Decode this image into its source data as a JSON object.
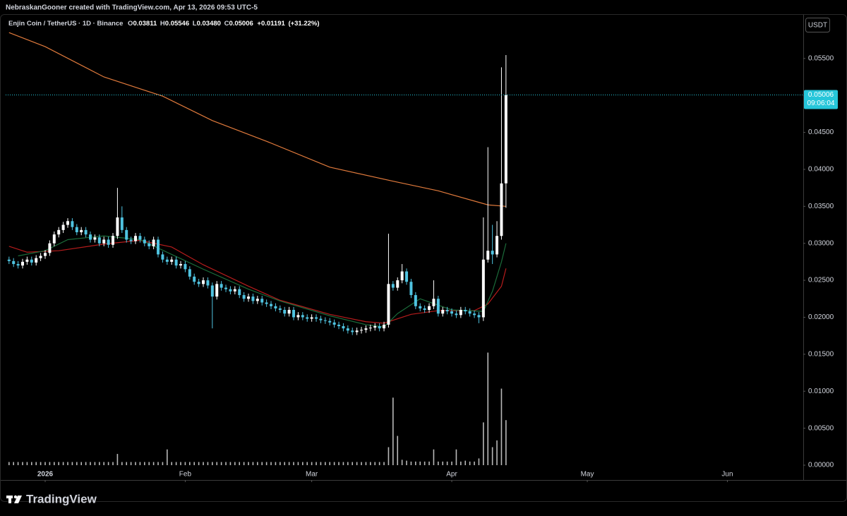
{
  "header": "NebraskanGooner created with TradingView.com, Apr 13, 2026 09:53 UTC-5",
  "brand": "TradingView",
  "chart_data": {
    "type": "candlestick",
    "symbol": "Enjin Coin / TetherUS · 1D · Binance",
    "ohlc_legend": [
      {
        "key": "O",
        "value": 0.03811,
        "label": "0.03811"
      },
      {
        "key": "H",
        "value": 0.05546,
        "label": "0.05546"
      },
      {
        "key": "L",
        "value": 0.0348,
        "label": "0.03480"
      },
      {
        "key": "C",
        "value": 0.05006,
        "label": "0.05006"
      }
    ],
    "change": {
      "value": 0.01191,
      "label": "+0.01191"
    },
    "change_pct": {
      "value": 31.22,
      "label": "(+31.22%)"
    },
    "currency": "USDT",
    "countdown": "09:06:04",
    "last_price": {
      "value": 0.05006,
      "label": "0.05006"
    },
    "up_color": "#ffffff",
    "down_color": "#4fc3e0",
    "volume_color": "#b8b8b8",
    "last_color": "#26c6da",
    "xlim": [
      -8.75,
      167.8
    ],
    "xticks": [
      {
        "value": 0,
        "label": "2026"
      },
      {
        "value": 31,
        "label": "Feb"
      },
      {
        "value": 59,
        "label": "Mar"
      },
      {
        "value": 90,
        "label": "Apr"
      },
      {
        "value": 120,
        "label": "May"
      },
      {
        "value": 151,
        "label": "Jun"
      }
    ],
    "ylim": [
      0,
      0.0609
    ],
    "yticks": [
      {
        "value": 0,
        "label": "0.00000"
      },
      {
        "value": 0.005,
        "label": "0.00500"
      },
      {
        "value": 0.01,
        "label": "0.01000"
      },
      {
        "value": 0.015,
        "label": "0.01500"
      },
      {
        "value": 0.02,
        "label": "0.02000"
      },
      {
        "value": 0.025,
        "label": "0.02500"
      },
      {
        "value": 0.03,
        "label": "0.03000"
      },
      {
        "value": 0.035,
        "label": "0.03500"
      },
      {
        "value": 0.04,
        "label": "0.04000"
      },
      {
        "value": 0.045,
        "label": "0.04500"
      },
      {
        "value": 0.05,
        "label": "0.05000"
      },
      {
        "value": 0.055,
        "label": "0.05500"
      }
    ],
    "y2lim": [
      0,
      100
    ],
    "x": [
      -8,
      -7,
      -6,
      -5,
      -4,
      -3,
      -2,
      -1,
      0,
      1,
      2,
      3,
      4,
      5,
      6,
      7,
      8,
      9,
      10,
      11,
      12,
      13,
      14,
      15,
      16,
      17,
      18,
      19,
      20,
      21,
      22,
      23,
      24,
      25,
      26,
      27,
      28,
      29,
      30,
      31,
      32,
      33,
      34,
      35,
      36,
      37,
      38,
      39,
      40,
      41,
      42,
      43,
      44,
      45,
      46,
      47,
      48,
      49,
      50,
      51,
      52,
      53,
      54,
      55,
      56,
      57,
      58,
      59,
      60,
      61,
      62,
      63,
      64,
      65,
      66,
      67,
      68,
      69,
      70,
      71,
      72,
      73,
      74,
      75,
      76,
      77,
      78,
      79,
      80,
      81,
      82,
      83,
      84,
      85,
      86,
      87,
      88,
      89,
      90,
      91,
      92,
      93,
      94,
      95,
      96,
      97,
      98,
      99,
      100,
      101,
      102
    ],
    "open": [
      0.0278,
      0.0276,
      0.0272,
      0.027,
      0.0275,
      0.0278,
      0.0274,
      0.028,
      0.0283,
      0.0287,
      0.03,
      0.0312,
      0.0318,
      0.0325,
      0.033,
      0.0322,
      0.0315,
      0.0318,
      0.0312,
      0.0305,
      0.0308,
      0.03,
      0.0305,
      0.0298,
      0.031,
      0.0335,
      0.0318,
      0.0305,
      0.0303,
      0.031,
      0.0305,
      0.03,
      0.0296,
      0.0305,
      0.0285,
      0.0278,
      0.0275,
      0.0278,
      0.027,
      0.0272,
      0.0265,
      0.0255,
      0.0248,
      0.0245,
      0.025,
      0.0243,
      0.0228,
      0.0245,
      0.024,
      0.0238,
      0.0235,
      0.0238,
      0.023,
      0.0225,
      0.0228,
      0.0222,
      0.0225,
      0.022,
      0.0218,
      0.0215,
      0.0212,
      0.021,
      0.0205,
      0.021,
      0.02,
      0.0203,
      0.02,
      0.0198,
      0.02,
      0.0198,
      0.0196,
      0.0195,
      0.0193,
      0.019,
      0.0188,
      0.0185,
      0.0182,
      0.018,
      0.0182,
      0.0183,
      0.0185,
      0.0186,
      0.0188,
      0.0185,
      0.019,
      0.0245,
      0.024,
      0.025,
      0.0262,
      0.0248,
      0.023,
      0.0215,
      0.0212,
      0.021,
      0.0215,
      0.0225,
      0.0205,
      0.021,
      0.0208,
      0.0205,
      0.0203,
      0.021,
      0.0208,
      0.0205,
      0.0203,
      0.02,
      0.0278,
      0.029,
      0.0285,
      0.031,
      0.03811
    ],
    "high": [
      0.0282,
      0.028,
      0.0276,
      0.0279,
      0.0282,
      0.0282,
      0.0284,
      0.0287,
      0.0291,
      0.0304,
      0.0316,
      0.0322,
      0.0329,
      0.0334,
      0.0334,
      0.0326,
      0.0322,
      0.0322,
      0.0316,
      0.0312,
      0.0312,
      0.0309,
      0.0309,
      0.0314,
      0.0375,
      0.035,
      0.0322,
      0.0309,
      0.0314,
      0.0314,
      0.0309,
      0.0304,
      0.0309,
      0.0309,
      0.0289,
      0.0282,
      0.0282,
      0.0282,
      0.0276,
      0.0276,
      0.0269,
      0.0259,
      0.0252,
      0.0254,
      0.0254,
      0.0247,
      0.0249,
      0.0249,
      0.0244,
      0.0242,
      0.0242,
      0.0242,
      0.0234,
      0.0232,
      0.0232,
      0.0229,
      0.0229,
      0.0224,
      0.0222,
      0.0219,
      0.0216,
      0.0214,
      0.0214,
      0.0214,
      0.0207,
      0.0207,
      0.0204,
      0.0204,
      0.0204,
      0.0202,
      0.02,
      0.0199,
      0.0197,
      0.0194,
      0.0192,
      0.0189,
      0.0186,
      0.0186,
      0.0187,
      0.0189,
      0.019,
      0.0192,
      0.0192,
      0.0194,
      0.0313,
      0.0249,
      0.0254,
      0.0272,
      0.0266,
      0.0252,
      0.0234,
      0.0219,
      0.0216,
      0.0219,
      0.025,
      0.0229,
      0.0214,
      0.0214,
      0.0212,
      0.0209,
      0.0214,
      0.0214,
      0.0212,
      0.0209,
      0.0207,
      0.0335,
      0.043,
      0.0325,
      0.033,
      0.0538,
      0.05546
    ],
    "low": [
      0.0272,
      0.0268,
      0.0266,
      0.0266,
      0.0271,
      0.027,
      0.027,
      0.0276,
      0.0279,
      0.0283,
      0.0296,
      0.0308,
      0.0314,
      0.0321,
      0.0318,
      0.0311,
      0.0311,
      0.0308,
      0.0301,
      0.0301,
      0.0296,
      0.0296,
      0.0294,
      0.0294,
      0.0306,
      0.0314,
      0.0301,
      0.0299,
      0.0299,
      0.0301,
      0.0296,
      0.0292,
      0.0292,
      0.0281,
      0.0274,
      0.0271,
      0.0271,
      0.0266,
      0.0266,
      0.0261,
      0.0251,
      0.0244,
      0.0241,
      0.0241,
      0.0239,
      0.0185,
      0.0224,
      0.0236,
      0.0234,
      0.0231,
      0.0231,
      0.0226,
      0.0221,
      0.0221,
      0.0218,
      0.0218,
      0.0216,
      0.0214,
      0.0211,
      0.0208,
      0.0206,
      0.0201,
      0.0201,
      0.0196,
      0.0196,
      0.0196,
      0.0194,
      0.0194,
      0.0194,
      0.0192,
      0.0191,
      0.0189,
      0.0186,
      0.0184,
      0.0181,
      0.0178,
      0.0176,
      0.0176,
      0.0178,
      0.0179,
      0.0181,
      0.0182,
      0.0181,
      0.0181,
      0.0186,
      0.0236,
      0.0236,
      0.0246,
      0.0244,
      0.0226,
      0.0211,
      0.0208,
      0.0206,
      0.0206,
      0.0211,
      0.0201,
      0.0201,
      0.0204,
      0.0201,
      0.0199,
      0.0199,
      0.0204,
      0.0201,
      0.0199,
      0.0192,
      0.0195,
      0.0274,
      0.0272,
      0.0281,
      0.0305,
      0.0348
    ],
    "close": [
      0.0276,
      0.0272,
      0.027,
      0.0275,
      0.0278,
      0.0274,
      0.028,
      0.0283,
      0.0287,
      0.03,
      0.0312,
      0.0318,
      0.0325,
      0.033,
      0.0322,
      0.0315,
      0.0318,
      0.0312,
      0.0305,
      0.0308,
      0.03,
      0.0305,
      0.0298,
      0.031,
      0.0335,
      0.0318,
      0.0305,
      0.0303,
      0.031,
      0.0305,
      0.03,
      0.0296,
      0.0305,
      0.0285,
      0.0278,
      0.0275,
      0.0278,
      0.027,
      0.0272,
      0.0265,
      0.0255,
      0.0248,
      0.0245,
      0.025,
      0.0243,
      0.0228,
      0.0245,
      0.024,
      0.0238,
      0.0235,
      0.0238,
      0.023,
      0.0225,
      0.0228,
      0.0222,
      0.0225,
      0.022,
      0.0218,
      0.0215,
      0.0212,
      0.021,
      0.0205,
      0.021,
      0.02,
      0.0203,
      0.02,
      0.0198,
      0.02,
      0.0198,
      0.0196,
      0.0195,
      0.0193,
      0.019,
      0.0188,
      0.0185,
      0.0182,
      0.018,
      0.0182,
      0.0183,
      0.0185,
      0.0186,
      0.0188,
      0.0185,
      0.019,
      0.0245,
      0.024,
      0.025,
      0.0262,
      0.0248,
      0.023,
      0.0215,
      0.0212,
      0.021,
      0.0215,
      0.0225,
      0.0205,
      0.021,
      0.0208,
      0.0205,
      0.0203,
      0.021,
      0.0208,
      0.0205,
      0.0203,
      0.02,
      0.0278,
      0.029,
      0.0285,
      0.031,
      0.0381,
      0.05006
    ],
    "volume": [
      0.7,
      0.7,
      0.7,
      0.7,
      0.7,
      0.7,
      0.7,
      0.7,
      0.7,
      0.7,
      0.7,
      0.7,
      0.7,
      0.7,
      0.7,
      0.7,
      0.7,
      0.7,
      0.7,
      0.7,
      0.7,
      0.7,
      0.7,
      0.7,
      2.5,
      0.7,
      0.7,
      0.7,
      0.7,
      0.7,
      0.7,
      0.7,
      0.7,
      0.7,
      0.7,
      3.5,
      0.7,
      0.7,
      0.7,
      0.7,
      0.7,
      0.7,
      0.7,
      0.7,
      0.7,
      0.7,
      0.7,
      0.7,
      0.7,
      0.7,
      0.7,
      0.7,
      0.7,
      0.7,
      0.7,
      0.7,
      0.7,
      0.7,
      0.7,
      0.7,
      0.7,
      0.7,
      0.7,
      0.7,
      0.7,
      0.7,
      0.7,
      0.7,
      0.7,
      0.7,
      0.7,
      0.7,
      0.7,
      0.7,
      0.7,
      0.7,
      0.7,
      0.7,
      0.7,
      0.7,
      0.7,
      0.7,
      0.7,
      0.7,
      4,
      15,
      6.5,
      1.2,
      1,
      0.8,
      0.8,
      0.8,
      0.8,
      0.8,
      3.5,
      0.8,
      0.8,
      0.8,
      0.8,
      3.5,
      0.8,
      1,
      0.8,
      0.8,
      1.5,
      9.5,
      25,
      4,
      5.5,
      17,
      10
    ],
    "lines": [
      {
        "color": "#e07a3c",
        "x": [
          -8,
          0,
          13,
          26,
          37,
          49,
          63,
          77,
          87,
          98,
          102
        ],
        "values": [
          0.0585,
          0.0566,
          0.0525,
          0.0499,
          0.0466,
          0.0438,
          0.0403,
          0.0384,
          0.0371,
          0.0352,
          0.035
        ]
      },
      {
        "color": "#b71c1c",
        "x": [
          -8,
          -4,
          3,
          13,
          21,
          28,
          35,
          45,
          52,
          63,
          71,
          75,
          81,
          87,
          95,
          98,
          101,
          102
        ],
        "values": [
          0.0296,
          0.0288,
          0.029,
          0.0299,
          0.0304,
          0.0295,
          0.0271,
          0.0242,
          0.0223,
          0.0204,
          0.0194,
          0.0192,
          0.0204,
          0.0209,
          0.0209,
          0.0218,
          0.0242,
          0.0266
        ]
      },
      {
        "color": "#1b6b3a",
        "x": [
          -6,
          0,
          5,
          13,
          21,
          28,
          35,
          45,
          52,
          63,
          71,
          75,
          78,
          83,
          90,
          97,
          99,
          101,
          102
        ],
        "values": [
          0.0283,
          0.029,
          0.0305,
          0.031,
          0.0305,
          0.0285,
          0.0265,
          0.0238,
          0.0222,
          0.0202,
          0.019,
          0.0187,
          0.0205,
          0.0225,
          0.021,
          0.0208,
          0.0235,
          0.0275,
          0.03
        ]
      }
    ]
  }
}
